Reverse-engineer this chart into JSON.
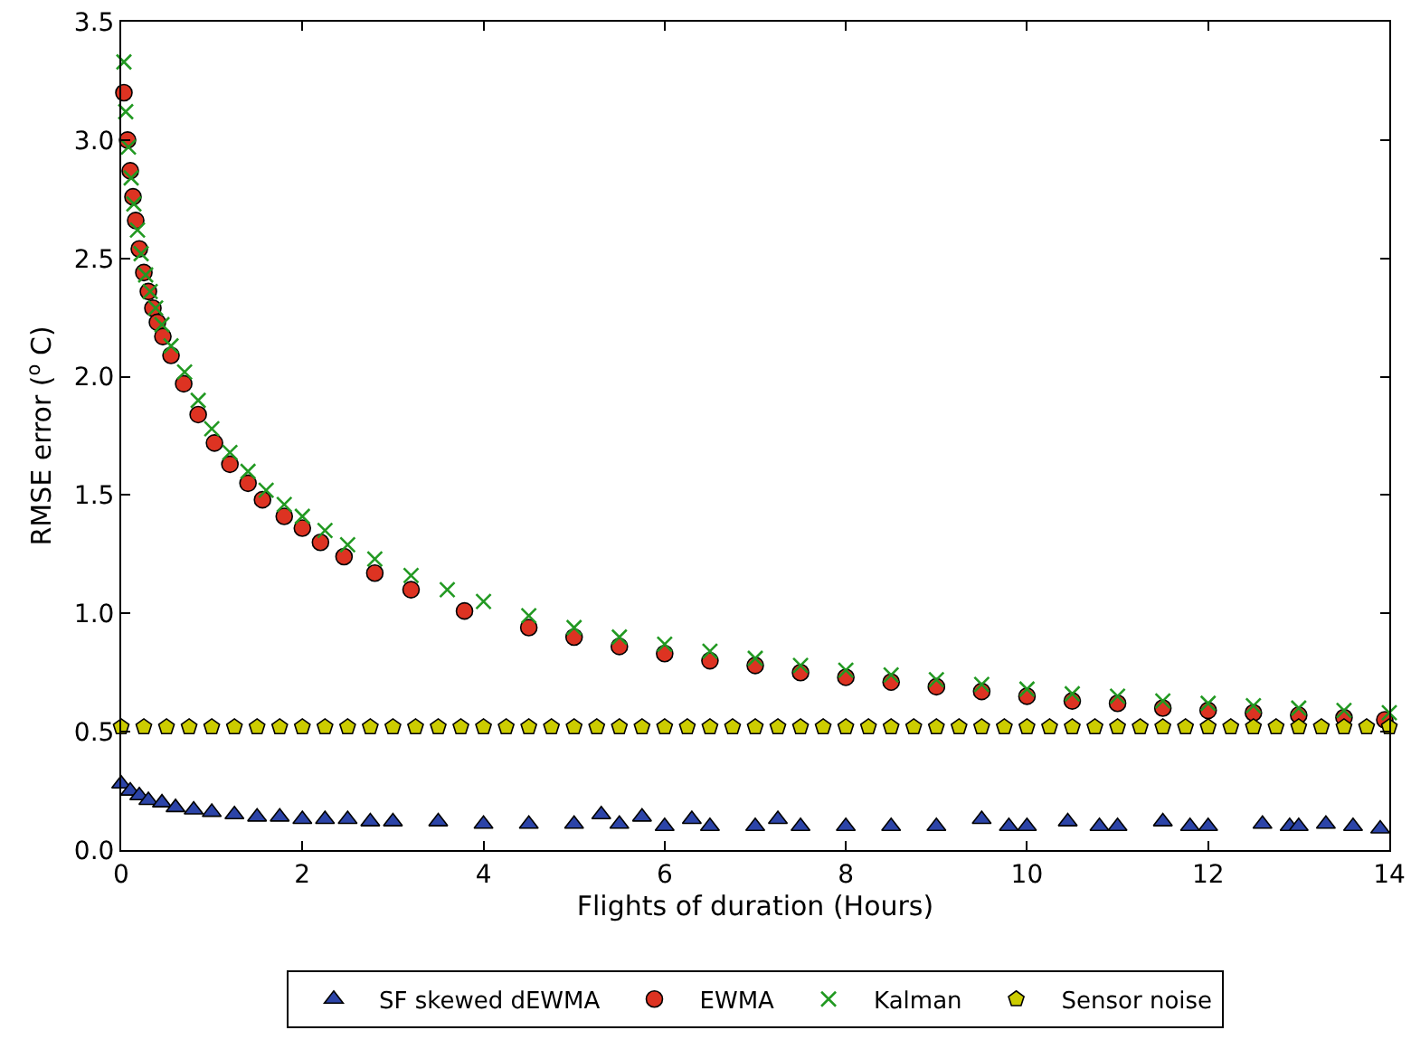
{
  "chart_data": {
    "type": "scatter",
    "xlabel": "Flights of duration (Hours)",
    "ylabel": "RMSE error ($^{o}$ C)",
    "xlim": [
      0,
      14
    ],
    "xticks": [
      0,
      2,
      4,
      6,
      8,
      10,
      12,
      14
    ],
    "ylim": [
      0,
      3.5
    ],
    "yticks": [
      {
        "value": 0,
        "label": "0.0"
      },
      {
        "value": 0.5,
        "label": "0.5"
      },
      {
        "value": 1,
        "label": "1.0"
      },
      {
        "value": 1.5,
        "label": "1.5"
      },
      {
        "value": 2,
        "label": "2.0"
      },
      {
        "value": 2.5,
        "label": "2.5"
      },
      {
        "value": 3,
        "label": "3.0"
      },
      {
        "value": 3.5,
        "label": "3.5"
      }
    ],
    "grid": false,
    "legend": "bottom",
    "series": [
      {
        "name": "SF skewed dEWMA",
        "color": "#2c44a8",
        "marker": "triangle",
        "x": [
          0,
          0.1,
          0.2,
          0.3,
          0.45,
          0.6,
          0.8,
          1.0,
          1.25,
          1.5,
          1.75,
          2,
          2.25,
          2.5,
          2.75,
          3,
          3.5,
          4,
          4.5,
          5,
          5.3,
          5.5,
          5.75,
          6,
          6.3,
          6.5,
          7,
          7.25,
          7.5,
          8,
          8.5,
          9,
          9.5,
          9.8,
          10,
          10.45,
          10.8,
          11,
          11.5,
          11.8,
          12,
          12.6,
          12.9,
          13,
          13.3,
          13.6,
          13.9
        ],
        "values": [
          0.28,
          0.25,
          0.23,
          0.21,
          0.2,
          0.18,
          0.17,
          0.16,
          0.15,
          0.14,
          0.14,
          0.13,
          0.13,
          0.13,
          0.12,
          0.12,
          0.12,
          0.11,
          0.11,
          0.11,
          0.15,
          0.11,
          0.14,
          0.1,
          0.13,
          0.1,
          0.1,
          0.13,
          0.1,
          0.1,
          0.1,
          0.1,
          0.13,
          0.1,
          0.1,
          0.12,
          0.1,
          0.1,
          0.12,
          0.1,
          0.1,
          0.11,
          0.1,
          0.1,
          0.11,
          0.1,
          0.09
        ]
      },
      {
        "name": "EWMA",
        "color": "#dd3322",
        "marker": "circle",
        "x": [
          0.03,
          0.07,
          0.1,
          0.13,
          0.16,
          0.2,
          0.25,
          0.3,
          0.35,
          0.4,
          0.46,
          0.55,
          0.69,
          0.85,
          1.03,
          1.2,
          1.4,
          1.56,
          1.8,
          2.0,
          2.2,
          2.46,
          2.8,
          3.2,
          3.79,
          4.5,
          5,
          5.5,
          6,
          6.5,
          7,
          7.5,
          8,
          8.5,
          9,
          9.5,
          10,
          10.5,
          11,
          11.5,
          12,
          12.5,
          13,
          13.5,
          13.95
        ],
        "values": [
          3.2,
          3.0,
          2.87,
          2.76,
          2.66,
          2.54,
          2.44,
          2.36,
          2.29,
          2.23,
          2.17,
          2.09,
          1.97,
          1.84,
          1.72,
          1.63,
          1.55,
          1.48,
          1.41,
          1.36,
          1.3,
          1.24,
          1.17,
          1.1,
          1.01,
          0.94,
          0.9,
          0.86,
          0.83,
          0.8,
          0.78,
          0.75,
          0.73,
          0.71,
          0.69,
          0.67,
          0.65,
          0.63,
          0.62,
          0.6,
          0.59,
          0.58,
          0.57,
          0.56,
          0.55
        ]
      },
      {
        "name": "Kalman",
        "color": "#229922",
        "marker": "cross",
        "x": [
          0.03,
          0.05,
          0.08,
          0.11,
          0.14,
          0.18,
          0.22,
          0.27,
          0.32,
          0.38,
          0.45,
          0.55,
          0.7,
          0.85,
          1.0,
          1.2,
          1.4,
          1.6,
          1.8,
          2.0,
          2.25,
          2.5,
          2.8,
          3.2,
          3.6,
          4,
          4.5,
          5,
          5.5,
          6,
          6.5,
          7,
          7.5,
          8,
          8.5,
          9,
          9.5,
          10,
          10.5,
          11,
          11.5,
          12,
          12.5,
          13,
          13.5,
          14
        ],
        "values": [
          3.33,
          3.12,
          2.97,
          2.84,
          2.73,
          2.62,
          2.52,
          2.43,
          2.36,
          2.29,
          2.22,
          2.13,
          2.02,
          1.9,
          1.78,
          1.68,
          1.6,
          1.52,
          1.46,
          1.41,
          1.35,
          1.29,
          1.23,
          1.16,
          1.1,
          1.05,
          0.99,
          0.94,
          0.9,
          0.87,
          0.84,
          0.81,
          0.78,
          0.76,
          0.74,
          0.72,
          0.7,
          0.68,
          0.66,
          0.65,
          0.63,
          0.62,
          0.61,
          0.6,
          0.59,
          0.58
        ]
      },
      {
        "name": "Sensor noise",
        "color": "#cccc00",
        "x": [
          0,
          0.25,
          0.5,
          0.75,
          1,
          1.25,
          1.5,
          1.75,
          2,
          2.25,
          2.5,
          2.75,
          3,
          3.25,
          3.5,
          3.75,
          4,
          4.25,
          4.5,
          4.75,
          5,
          5.25,
          5.5,
          5.75,
          6,
          6.25,
          6.5,
          6.75,
          7,
          7.25,
          7.5,
          7.75,
          8,
          8.25,
          8.5,
          8.75,
          9,
          9.25,
          9.5,
          9.75,
          10,
          10.25,
          10.5,
          10.75,
          11,
          11.25,
          11.5,
          11.75,
          12,
          12.25,
          12.5,
          12.75,
          13,
          13.25,
          13.5,
          13.75,
          14
        ],
        "values": [
          0.52,
          0.52,
          0.52,
          0.52,
          0.52,
          0.52,
          0.52,
          0.52,
          0.52,
          0.52,
          0.52,
          0.52,
          0.52,
          0.52,
          0.52,
          0.52,
          0.52,
          0.52,
          0.52,
          0.52,
          0.52,
          0.52,
          0.52,
          0.52,
          0.52,
          0.52,
          0.52,
          0.52,
          0.52,
          0.52,
          0.52,
          0.52,
          0.52,
          0.52,
          0.52,
          0.52,
          0.52,
          0.52,
          0.52,
          0.52,
          0.52,
          0.52,
          0.52,
          0.52,
          0.52,
          0.52,
          0.52,
          0.52,
          0.52,
          0.52,
          0.52,
          0.52,
          0.52,
          0.52,
          0.52,
          0.52,
          0.52
        ]
      }
    ]
  }
}
